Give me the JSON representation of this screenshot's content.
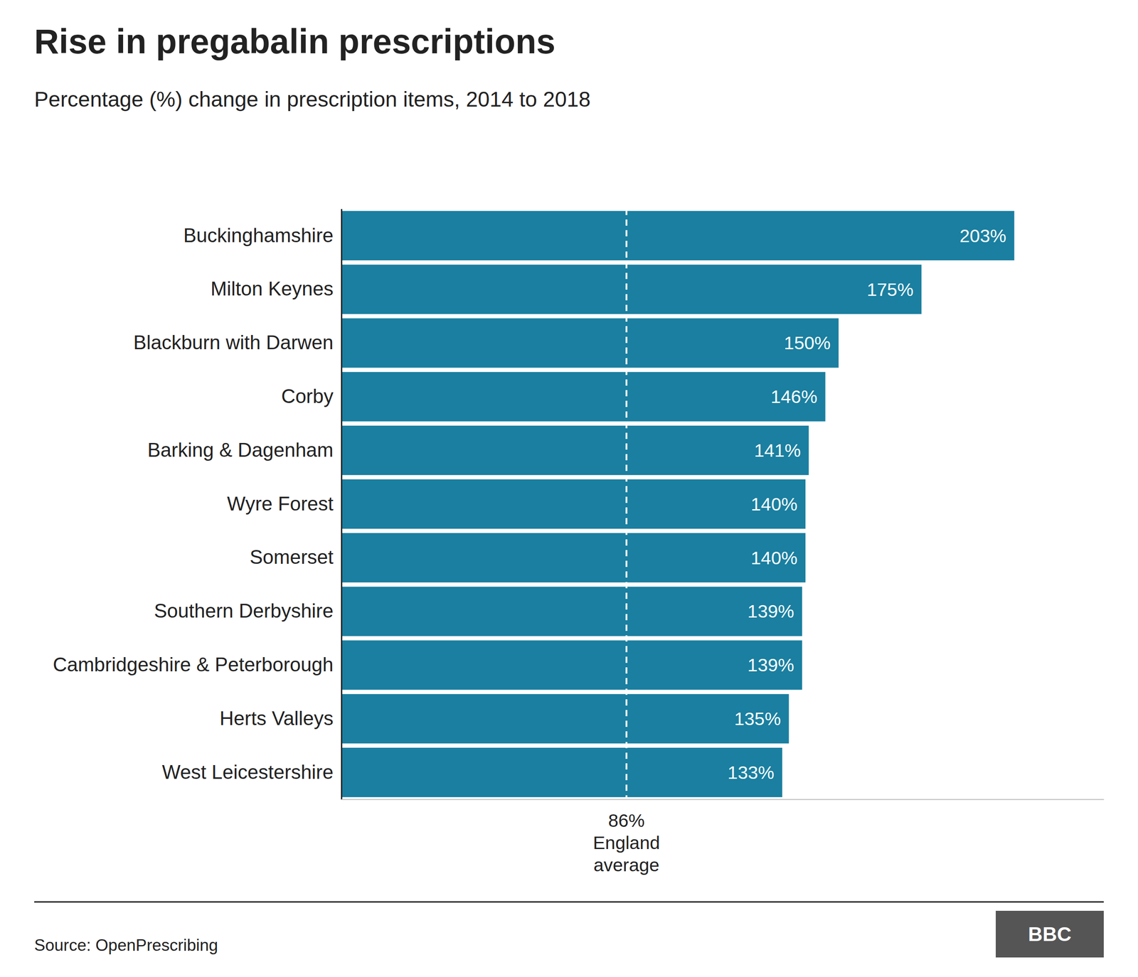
{
  "chart_data": {
    "type": "bar",
    "orientation": "horizontal",
    "title": "Rise in pregabalin prescriptions",
    "subtitle": "Percentage (%) change in prescription items, 2014 to 2018",
    "categories": [
      "Buckinghamshire",
      "Milton Keynes",
      "Blackburn with Darwen",
      "Corby",
      "Barking & Dagenham",
      "Wyre Forest",
      "Somerset",
      "Southern Derbyshire",
      "Cambridgeshire & Peterborough",
      "Herts Valleys",
      "West Leicestershire"
    ],
    "values": [
      203,
      175,
      150,
      146,
      141,
      140,
      140,
      139,
      139,
      135,
      133
    ],
    "value_labels": [
      "203%",
      "175%",
      "150%",
      "146%",
      "141%",
      "140%",
      "140%",
      "139%",
      "139%",
      "135%",
      "133%"
    ],
    "data_labels": true,
    "color": "#1a7fa0",
    "xlim": [
      0,
      230
    ],
    "tick_labels": "y",
    "grid": false,
    "annotations": [
      {
        "x": 86,
        "text": [
          "86%",
          "England",
          "average"
        ]
      }
    ],
    "source": "Source: OpenPrescribing",
    "logo": "BBC"
  }
}
